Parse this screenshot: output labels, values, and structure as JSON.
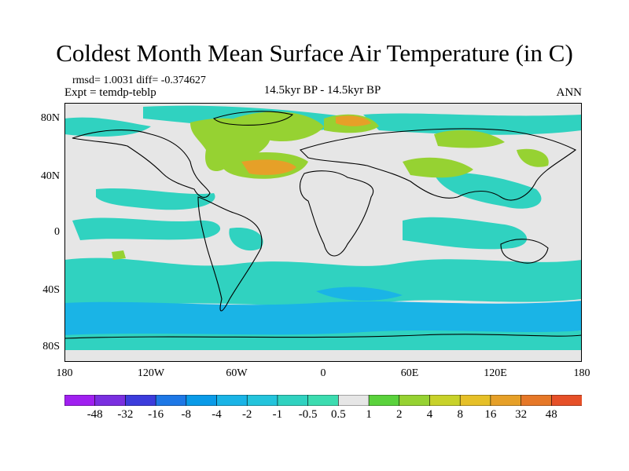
{
  "title": "Coldest Month Mean Surface Air Temperature (in C)",
  "stats_line": "rmsd= 1.0031 diff= -0.374627",
  "expt_line": "Expt = temdp-teblp",
  "center_label": "14.5kyr BP - 14.5kyr BP",
  "period": "ANN",
  "lat_ticks": [
    "80N",
    "40N",
    "0",
    "40S",
    "80S"
  ],
  "lon_ticks": [
    "180",
    "120W",
    "60W",
    "0",
    "60E",
    "120E",
    "180"
  ],
  "colorbar": {
    "labels": [
      "-48",
      "-32",
      "-16",
      "-8",
      "-4",
      "-2",
      "-1",
      "-0.5",
      "0.5",
      "1",
      "2",
      "4",
      "8",
      "16",
      "32",
      "48"
    ],
    "colors": [
      "#a020f0",
      "#7a2fe0",
      "#3c3cdc",
      "#1e78e6",
      "#0a9be8",
      "#1ab4e6",
      "#24c4dc",
      "#30d2c0",
      "#3cdcb0",
      "#e6e6e6",
      "#5ad23c",
      "#96d232",
      "#c8d22a",
      "#e6c028",
      "#e6a028",
      "#e67828",
      "#e65028"
    ]
  },
  "colors": {
    "neutral": "#e6e6e6",
    "cool": "#30d2c0",
    "cooler": "#1ab4e6",
    "warm": "#96d232",
    "warmer": "#e6a028"
  }
}
